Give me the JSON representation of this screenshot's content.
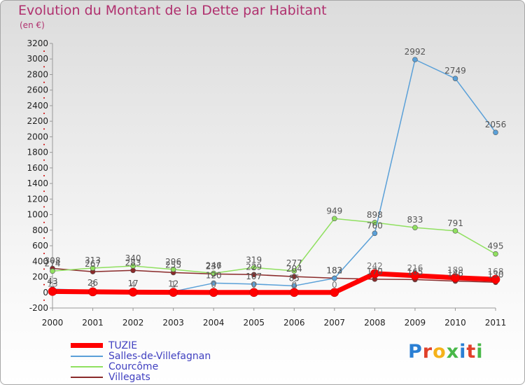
{
  "title": "Evolution du Montant de la Dette par Habitant",
  "subtitle": "(en €)",
  "brand": [
    "P",
    "r",
    "o",
    "x",
    "i",
    "t",
    "i"
  ],
  "brand_colors": [
    "#2a7fd4",
    "#e0402a",
    "#f5b21a",
    "#48b848",
    "#2a7fd4",
    "#e0402a",
    "#48b848"
  ],
  "chart_data": {
    "type": "line",
    "x": [
      "2000",
      "2001",
      "2002",
      "2003",
      "2004",
      "2005",
      "2006",
      "2007",
      "2008",
      "2009",
      "2010",
      "2011"
    ],
    "ylim": [
      -200,
      3200
    ],
    "yticks": [
      "-200",
      "0",
      "200",
      "400",
      "600",
      "800",
      "1000",
      "1200",
      "1400",
      "1600",
      "1800",
      "2000",
      "2200",
      "2400",
      "2600",
      "2800",
      "3000",
      "3200"
    ],
    "grid": false,
    "legend": "bottom-left",
    "series": [
      {
        "name": "TUZIE",
        "color": "#ff0000",
        "width": 7,
        "marker": 6,
        "label_color": "#777777",
        "values": [
          13,
          8,
          4,
          1,
          0,
          0,
          0,
          0,
          242,
          216,
          189,
          168
        ]
      },
      {
        "name": "Salles-de-Villefagnan",
        "color": "#5aa0d8",
        "width": 1.5,
        "marker": 3.5,
        "label_color": "#555555",
        "values": [
          43,
          26,
          17,
          12,
          120,
          107,
          85,
          182,
          760,
          2992,
          2749,
          2056
        ]
      },
      {
        "name": "Courcôme",
        "color": "#90e060",
        "width": 1.5,
        "marker": 3.5,
        "label_color": "#555555",
        "values": [
          274,
          313,
          340,
          296,
          246,
          319,
          277,
          949,
          898,
          833,
          791,
          495
        ]
      },
      {
        "name": "Villegats",
        "color": "#8a2a2a",
        "width": 1.5,
        "marker": 3.5,
        "label_color": "#555555",
        "values": [
          308,
          267,
          283,
          255,
          237,
          229,
          204,
          183,
          170,
          165,
          146,
          130
        ]
      }
    ]
  }
}
